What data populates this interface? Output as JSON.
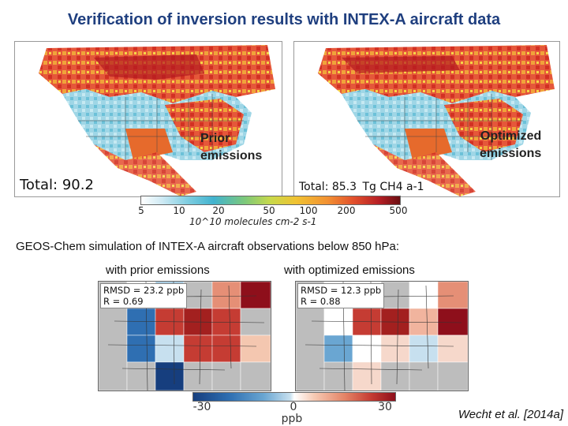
{
  "title": "Verification of inversion results with INTEX-A aircraft data",
  "maps": {
    "prior": {
      "label": "Prior emissions",
      "label_line1": "Prior",
      "label_line2": "emissions",
      "total": "Total: 90.2"
    },
    "optimized": {
      "label": "Optimized emissions",
      "label_line1": "Optimized",
      "label_line2": "emissions",
      "total": "Total: 85.3",
      "unit": "Tg CH4 a-1"
    }
  },
  "colorbar_emissions": {
    "ticks": [
      "5",
      "10",
      "20",
      "50",
      "100",
      "200",
      "500"
    ],
    "unit": "10^10 molecules cm-2 s-1"
  },
  "subtitle": "GEOS-Chem simulation of INTEX-A aircraft observations below 850 hPa:",
  "panels": {
    "prior": {
      "title": "with prior emissions",
      "rmsd": "RMSD = 23.2 ppb",
      "r": "R = 0.69"
    },
    "optimized": {
      "title": "with optimized emissions",
      "rmsd": "RMSD = 12.3 ppb",
      "r": "R = 0.88"
    }
  },
  "colorbar_bias": {
    "ticks": [
      "-30",
      "0",
      "30"
    ],
    "unit": "ppb"
  },
  "citation": "Wecht et al. [2014a]",
  "colors": {
    "title": "#1f3f7f",
    "water": "#ffffff",
    "land": "#ffffff"
  }
}
